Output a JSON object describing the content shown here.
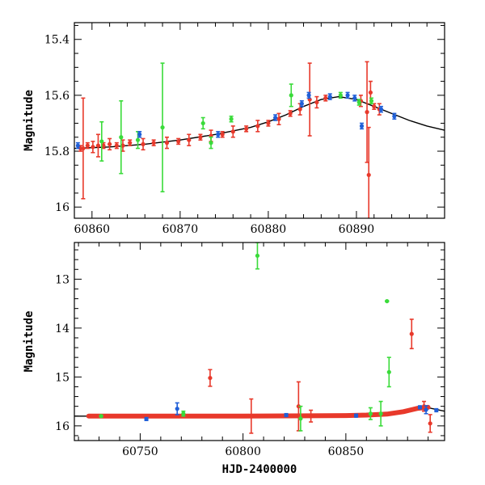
{
  "chart_data": [
    {
      "type": "scatter",
      "title": "",
      "xlabel": "",
      "ylabel": "Magnitude",
      "xlim": [
        60858,
        60900
      ],
      "ylim": [
        16.04,
        15.34
      ],
      "y_inverted": true,
      "xticks": [
        60860,
        60870,
        60880,
        60890
      ],
      "yticks": [
        15.4,
        15.6,
        15.8,
        16
      ],
      "ytick_labels": [
        "15.4",
        "15.6",
        "15.8",
        "16"
      ],
      "grid": false,
      "legend": "none",
      "model_curve": {
        "color": "#000000",
        "x": [
          60858,
          60862,
          60866,
          60870,
          60874,
          60878,
          60880,
          60882,
          60884,
          60886,
          60888,
          60890,
          60892,
          60894,
          60896,
          60898,
          60900
        ],
        "y": [
          15.79,
          15.785,
          15.775,
          15.76,
          15.74,
          15.715,
          15.695,
          15.67,
          15.64,
          15.615,
          15.605,
          15.615,
          15.64,
          15.665,
          15.69,
          15.71,
          15.725
        ]
      },
      "series": [
        {
          "color": "#e8392b",
          "points": [
            {
              "x": 60858.7,
              "y": 15.79,
              "err": 0.01
            },
            {
              "x": 60859.0,
              "y": 15.79,
              "err": 0.18
            },
            {
              "x": 60859.5,
              "y": 15.78,
              "err": 0.01
            },
            {
              "x": 60860.1,
              "y": 15.785,
              "err": 0.02
            },
            {
              "x": 60860.7,
              "y": 15.78,
              "err": 0.04
            },
            {
              "x": 60861.3,
              "y": 15.78,
              "err": 0.01
            },
            {
              "x": 60862.0,
              "y": 15.775,
              "err": 0.02
            },
            {
              "x": 60862.8,
              "y": 15.78,
              "err": 0.01
            },
            {
              "x": 60863.5,
              "y": 15.78,
              "err": 0.02
            },
            {
              "x": 60864.3,
              "y": 15.77,
              "err": 0.01
            },
            {
              "x": 60865.8,
              "y": 15.775,
              "err": 0.02
            },
            {
              "x": 60867.0,
              "y": 15.77,
              "err": 0.01
            },
            {
              "x": 60868.5,
              "y": 15.77,
              "err": 0.02
            },
            {
              "x": 60869.8,
              "y": 15.765,
              "err": 0.01
            },
            {
              "x": 60871.0,
              "y": 15.76,
              "err": 0.02
            },
            {
              "x": 60872.3,
              "y": 15.75,
              "err": 0.01
            },
            {
              "x": 60873.5,
              "y": 15.745,
              "err": 0.02
            },
            {
              "x": 60874.8,
              "y": 15.74,
              "err": 0.01
            },
            {
              "x": 60876.0,
              "y": 15.73,
              "err": 0.02
            },
            {
              "x": 60877.5,
              "y": 15.72,
              "err": 0.01
            },
            {
              "x": 60878.8,
              "y": 15.71,
              "err": 0.02
            },
            {
              "x": 60880.0,
              "y": 15.7,
              "err": 0.01
            },
            {
              "x": 60881.2,
              "y": 15.685,
              "err": 0.02
            },
            {
              "x": 60882.5,
              "y": 15.665,
              "err": 0.01
            },
            {
              "x": 60883.6,
              "y": 15.65,
              "err": 0.02
            },
            {
              "x": 60884.7,
              "y": 15.615,
              "err": 0.13
            },
            {
              "x": 60885.5,
              "y": 15.625,
              "err": 0.02
            },
            {
              "x": 60886.5,
              "y": 15.61,
              "err": 0.01
            },
            {
              "x": 60890.5,
              "y": 15.62,
              "err": 0.02
            },
            {
              "x": 60891.2,
              "y": 15.66,
              "err": 0.18
            },
            {
              "x": 60891.4,
              "y": 15.885,
              "err": 0.17
            },
            {
              "x": 60891.6,
              "y": 15.59,
              "err": 0.04
            },
            {
              "x": 60892.0,
              "y": 15.64,
              "err": 0.01
            },
            {
              "x": 60892.6,
              "y": 15.65,
              "err": 0.02
            }
          ]
        },
        {
          "color": "#3adb3a",
          "points": [
            {
              "x": 60861.1,
              "y": 15.765,
              "err": 0.07
            },
            {
              "x": 60863.3,
              "y": 15.75,
              "err": 0.13
            },
            {
              "x": 60865.2,
              "y": 15.76,
              "err": 0.03
            },
            {
              "x": 60868.0,
              "y": 15.715,
              "err": 0.23
            },
            {
              "x": 60872.6,
              "y": 15.7,
              "err": 0.02
            },
            {
              "x": 60873.5,
              "y": 15.77,
              "err": 0.02
            },
            {
              "x": 60875.8,
              "y": 15.685,
              "err": 0.01
            },
            {
              "x": 60882.6,
              "y": 15.6,
              "err": 0.04
            },
            {
              "x": 60888.2,
              "y": 15.6,
              "err": 0.01
            },
            {
              "x": 60890.3,
              "y": 15.625,
              "err": 0.01
            },
            {
              "x": 60891.7,
              "y": 15.62,
              "err": 0.01
            }
          ]
        },
        {
          "color": "#1f5fd8",
          "points": [
            {
              "x": 60858.4,
              "y": 15.78,
              "err": 0.01
            },
            {
              "x": 60865.4,
              "y": 15.74,
              "err": 0.01
            },
            {
              "x": 60874.3,
              "y": 15.74,
              "err": 0.01
            },
            {
              "x": 60880.8,
              "y": 15.68,
              "err": 0.01
            },
            {
              "x": 60883.8,
              "y": 15.63,
              "err": 0.01
            },
            {
              "x": 60884.6,
              "y": 15.6,
              "err": 0.01
            },
            {
              "x": 60887.0,
              "y": 15.605,
              "err": 0.01
            },
            {
              "x": 60889.0,
              "y": 15.6,
              "err": 0.01
            },
            {
              "x": 60889.8,
              "y": 15.61,
              "err": 0.01
            },
            {
              "x": 60890.6,
              "y": 15.71,
              "err": 0.01
            },
            {
              "x": 60892.8,
              "y": 15.65,
              "err": 0.01
            },
            {
              "x": 60894.3,
              "y": 15.675,
              "err": 0.01
            }
          ]
        }
      ]
    },
    {
      "type": "scatter",
      "title": "",
      "xlabel": "HJD-2400000",
      "ylabel": "Magnitude",
      "xlim": [
        60718,
        60898
      ],
      "ylim": [
        16.3,
        12.25
      ],
      "y_inverted": true,
      "xticks": [
        60750,
        60800,
        60850
      ],
      "yticks": [
        13,
        14,
        15,
        16
      ],
      "ytick_labels": [
        "13",
        "14",
        "15",
        "16"
      ],
      "grid": false,
      "legend": "none",
      "model_curve": {
        "color": "#000000",
        "x": [
          60718,
          60750,
          60800,
          60850,
          60870,
          60880,
          60888,
          60898
        ],
        "y": [
          15.8,
          15.8,
          15.8,
          15.79,
          15.76,
          15.67,
          15.61,
          15.7
        ]
      },
      "baseline": {
        "color": "#e8392b",
        "x": [
          60725,
          60750,
          60800,
          60850,
          60860,
          60870,
          60878,
          60885,
          60890
        ],
        "y": [
          15.8,
          15.8,
          15.8,
          15.79,
          15.78,
          15.76,
          15.71,
          15.64,
          15.62
        ]
      },
      "series": [
        {
          "color": "#e8392b",
          "points": [
            {
              "x": 60725,
              "y": 15.8,
              "err": 0.02
            },
            {
              "x": 60784,
              "y": 15.02,
              "err": 0.17
            },
            {
              "x": 60804,
              "y": 15.8,
              "err": 0.35
            },
            {
              "x": 60827,
              "y": 15.6,
              "err": 0.5
            },
            {
              "x": 60833,
              "y": 15.8,
              "err": 0.12
            },
            {
              "x": 60882,
              "y": 14.12,
              "err": 0.3
            },
            {
              "x": 60888,
              "y": 15.6,
              "err": 0.1
            },
            {
              "x": 60891,
              "y": 15.95,
              "err": 0.18
            }
          ]
        },
        {
          "color": "#3adb3a",
          "points": [
            {
              "x": 60731,
              "y": 15.8,
              "err": 0.02
            },
            {
              "x": 60771,
              "y": 15.75,
              "err": 0.05
            },
            {
              "x": 60807,
              "y": 12.52,
              "err": 0.27
            },
            {
              "x": 60828,
              "y": 15.85,
              "err": 0.25
            },
            {
              "x": 60862,
              "y": 15.75,
              "err": 0.12
            },
            {
              "x": 60867,
              "y": 15.75,
              "err": 0.25
            },
            {
              "x": 60870,
              "y": 13.45,
              "err": 0.01
            },
            {
              "x": 60871,
              "y": 14.9,
              "err": 0.3
            }
          ]
        },
        {
          "color": "#1f5fd8",
          "points": [
            {
              "x": 60753,
              "y": 15.86,
              "err": 0.03
            },
            {
              "x": 60768,
              "y": 15.65,
              "err": 0.12
            },
            {
              "x": 60821,
              "y": 15.78,
              "err": 0.03
            },
            {
              "x": 60855,
              "y": 15.79,
              "err": 0.03
            },
            {
              "x": 60886,
              "y": 15.62,
              "err": 0.03
            },
            {
              "x": 60889,
              "y": 15.67,
              "err": 0.08
            },
            {
              "x": 60894,
              "y": 15.68,
              "err": 0.03
            }
          ]
        }
      ]
    }
  ]
}
